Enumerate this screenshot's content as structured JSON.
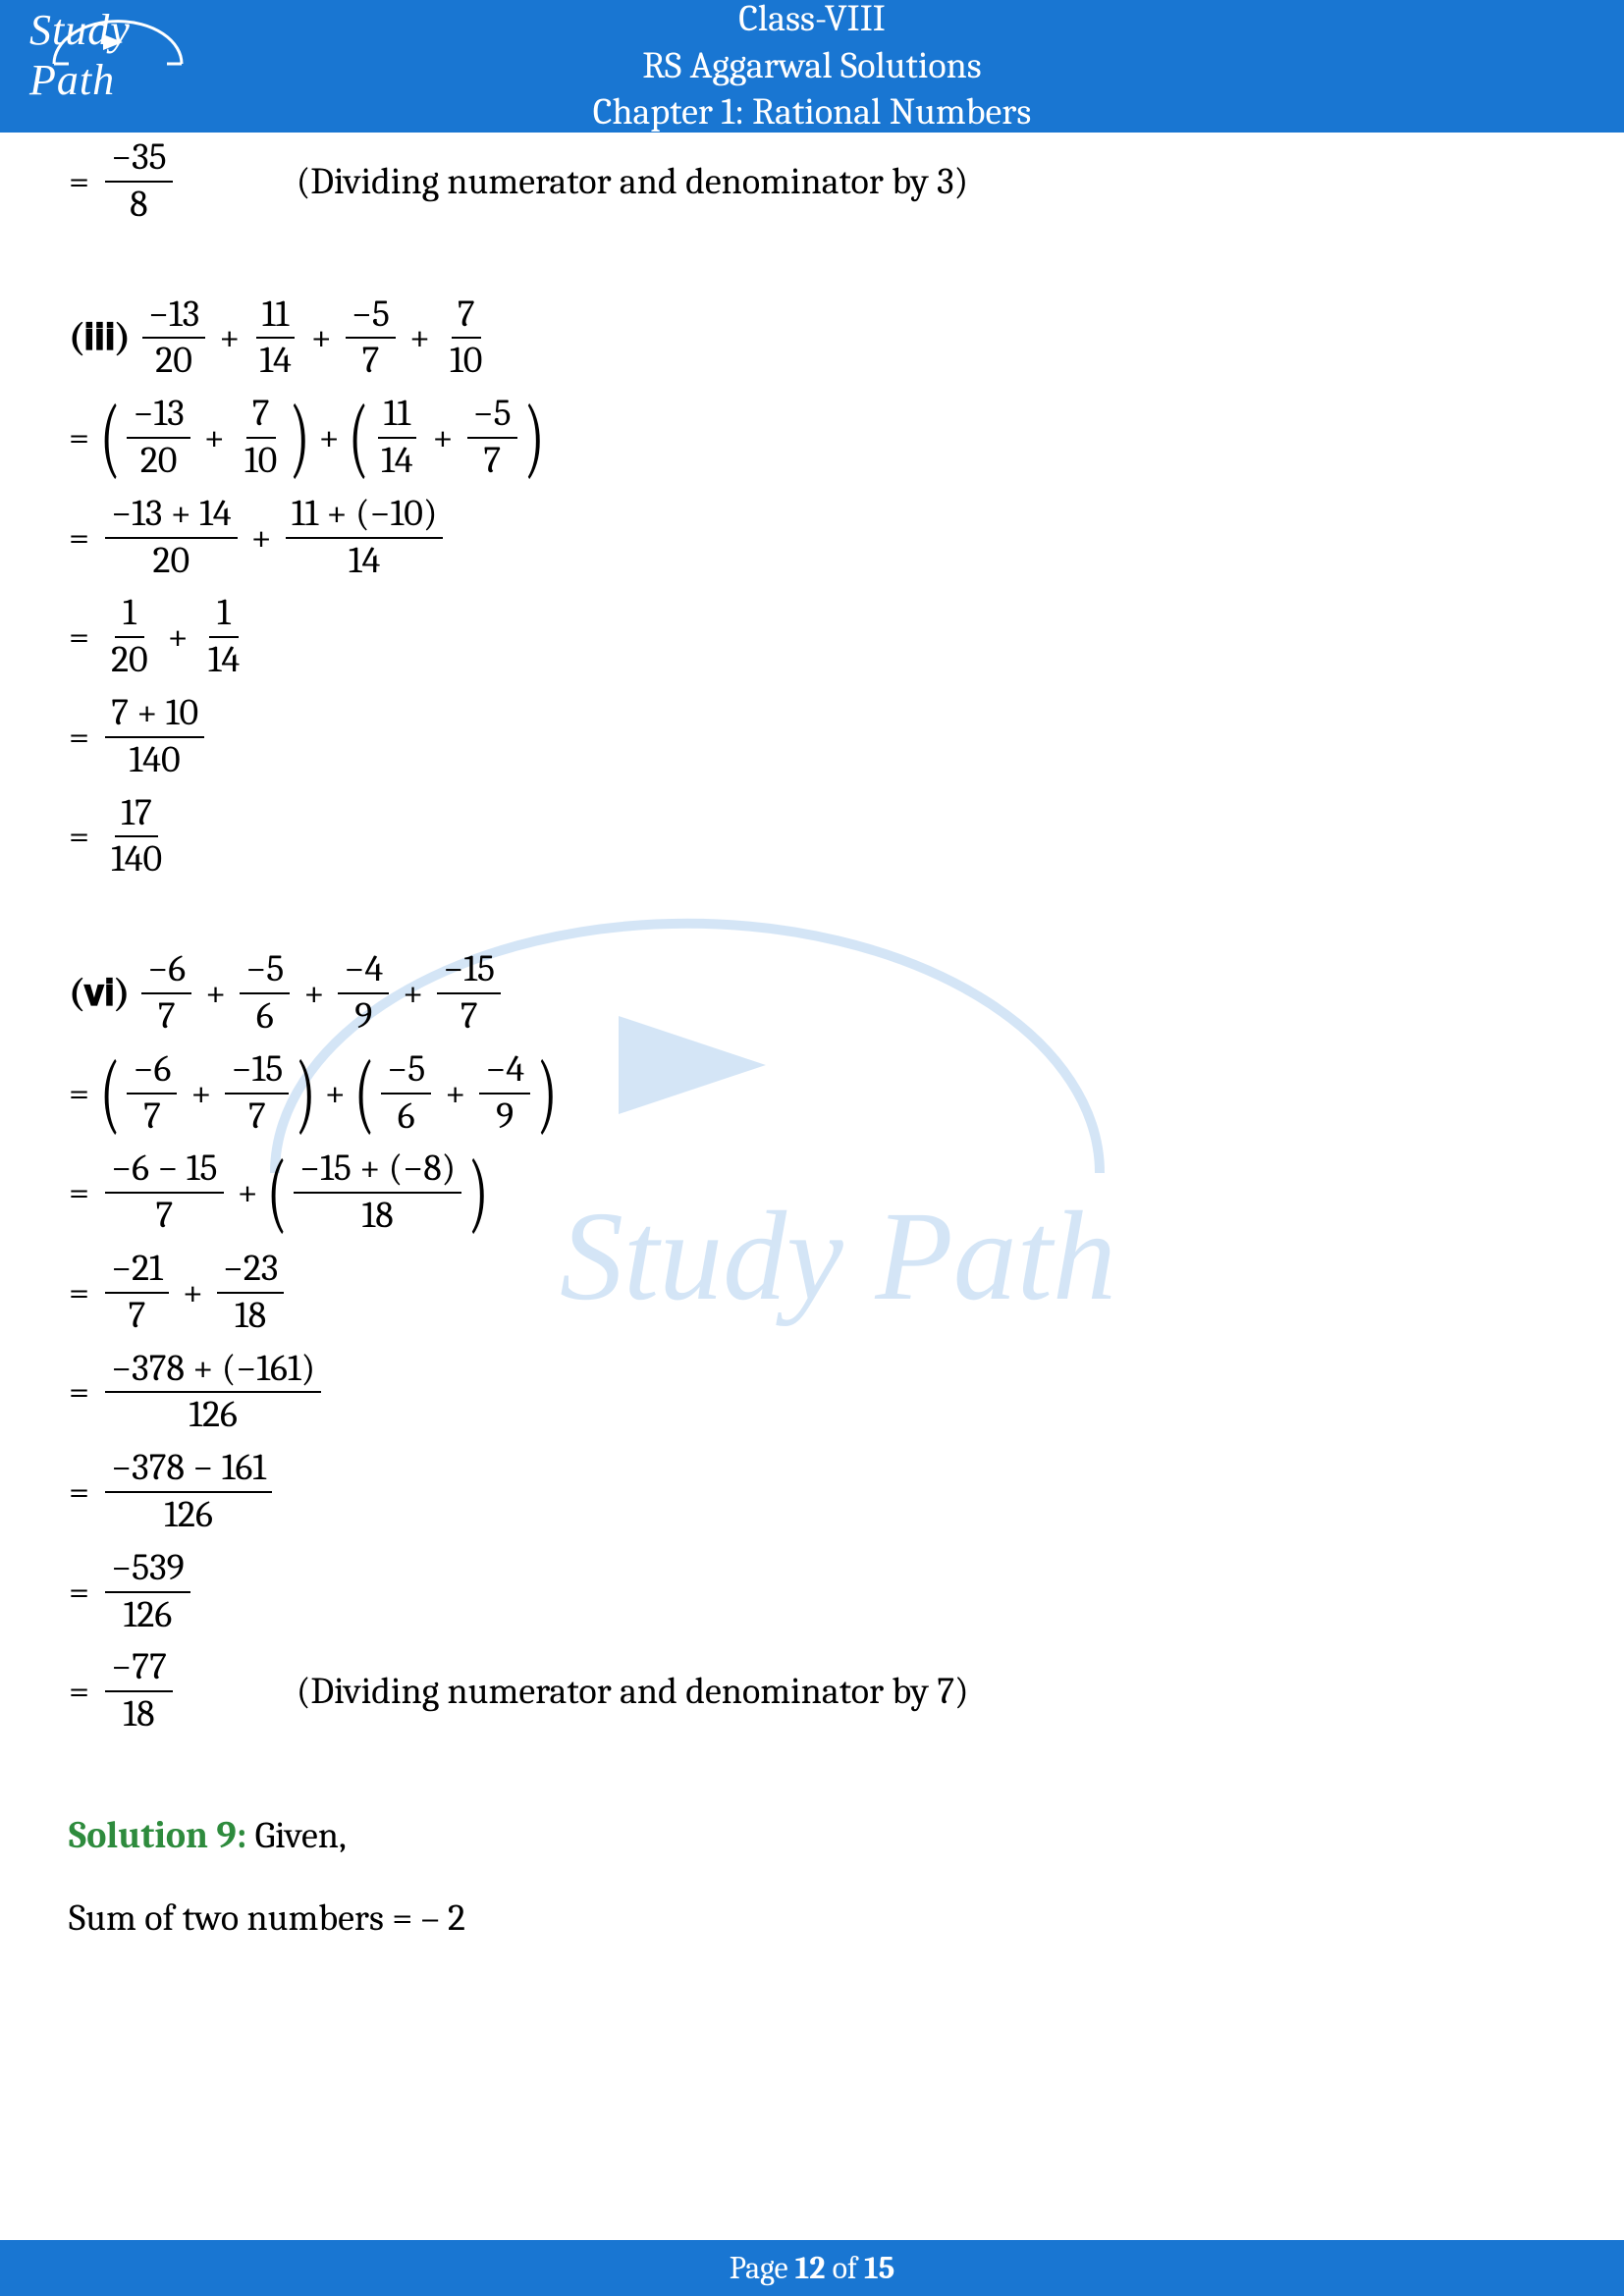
{
  "header": {
    "class_line": "Class-VIII",
    "book_line": "RS Aggarwal Solutions",
    "chapter_line": "Chapter 1: Rational Numbers",
    "logo_text": "Study Path"
  },
  "watermark": {
    "text": "Study Path"
  },
  "step_prev": {
    "eq": "=",
    "frac": {
      "num": "−35",
      "den": "8"
    },
    "note": "(Dividing numerator and denominator by 3)"
  },
  "prob_iii": {
    "label": "(𝐢𝐢𝐢)",
    "line0": {
      "t1": {
        "num": "−13",
        "den": "20"
      },
      "p1": "+",
      "t2": {
        "num": "11",
        "den": "14"
      },
      "p2": "+",
      "t3": {
        "num": "−5",
        "den": "7"
      },
      "p3": "+",
      "t4": {
        "num": "7",
        "den": "10"
      }
    },
    "line1": {
      "eq": "=",
      "g1a": {
        "num": "−13",
        "den": "20"
      },
      "p1": "+",
      "g1b": {
        "num": "7",
        "den": "10"
      },
      "mid": "+",
      "g2a": {
        "num": "11",
        "den": "14"
      },
      "p2": "+",
      "g2b": {
        "num": "−5",
        "den": "7"
      }
    },
    "line2": {
      "eq": "=",
      "f1": {
        "num": "−13 + 14",
        "den": "20"
      },
      "p": "+",
      "f2": {
        "num": "11 + (−10)",
        "den": "14"
      }
    },
    "line3": {
      "eq": "=",
      "f1": {
        "num": "1",
        "den": "20"
      },
      "p": "+",
      "f2": {
        "num": "1",
        "den": "14"
      }
    },
    "line4": {
      "eq": "=",
      "f": {
        "num": "7 + 10",
        "den": "140"
      }
    },
    "line5": {
      "eq": "=",
      "f": {
        "num": "17",
        "den": "140"
      }
    }
  },
  "prob_vi": {
    "label": "(𝐯𝐢)",
    "line0": {
      "t1": {
        "num": "−6",
        "den": "7"
      },
      "p1": "+",
      "t2": {
        "num": "−5",
        "den": "6"
      },
      "p2": "+",
      "t3": {
        "num": "−4",
        "den": "9"
      },
      "p3": "+",
      "t4": {
        "num": "−15",
        "den": "7"
      }
    },
    "line1": {
      "eq": "=",
      "g1a": {
        "num": "−6",
        "den": "7"
      },
      "p1": "+",
      "g1b": {
        "num": "−15",
        "den": "7"
      },
      "mid": "+",
      "g2a": {
        "num": "−5",
        "den": "6"
      },
      "p2": "+",
      "g2b": {
        "num": "−4",
        "den": "9"
      }
    },
    "line2": {
      "eq": "=",
      "f1": {
        "num": "−6 − 15",
        "den": "7"
      },
      "p": "+",
      "f2": {
        "num": "−15 + (−8)",
        "den": "18"
      }
    },
    "line3": {
      "eq": "=",
      "f1": {
        "num": "−21",
        "den": "7"
      },
      "p": "+",
      "f2": {
        "num": "−23",
        "den": "18"
      }
    },
    "line4": {
      "eq": "=",
      "f": {
        "num": "−378 + (−161)",
        "den": "126"
      }
    },
    "line5": {
      "eq": "=",
      "f": {
        "num": "−378 − 161",
        "den": "126"
      }
    },
    "line6": {
      "eq": "=",
      "f": {
        "num": "−539",
        "den": "126"
      }
    },
    "line7": {
      "eq": "=",
      "f": {
        "num": "−77",
        "den": "18"
      },
      "note": "(Dividing numerator and denominator by 7)"
    }
  },
  "solution9": {
    "label": "Solution 9:",
    "given": " Given,",
    "line": "Sum of two numbers = – 2"
  },
  "footer": {
    "prefix": "Page ",
    "current": "12",
    "of": " of ",
    "total": "15"
  },
  "colors": {
    "header_bg": "#1976d2",
    "solution_green": "#2e8b3d"
  }
}
